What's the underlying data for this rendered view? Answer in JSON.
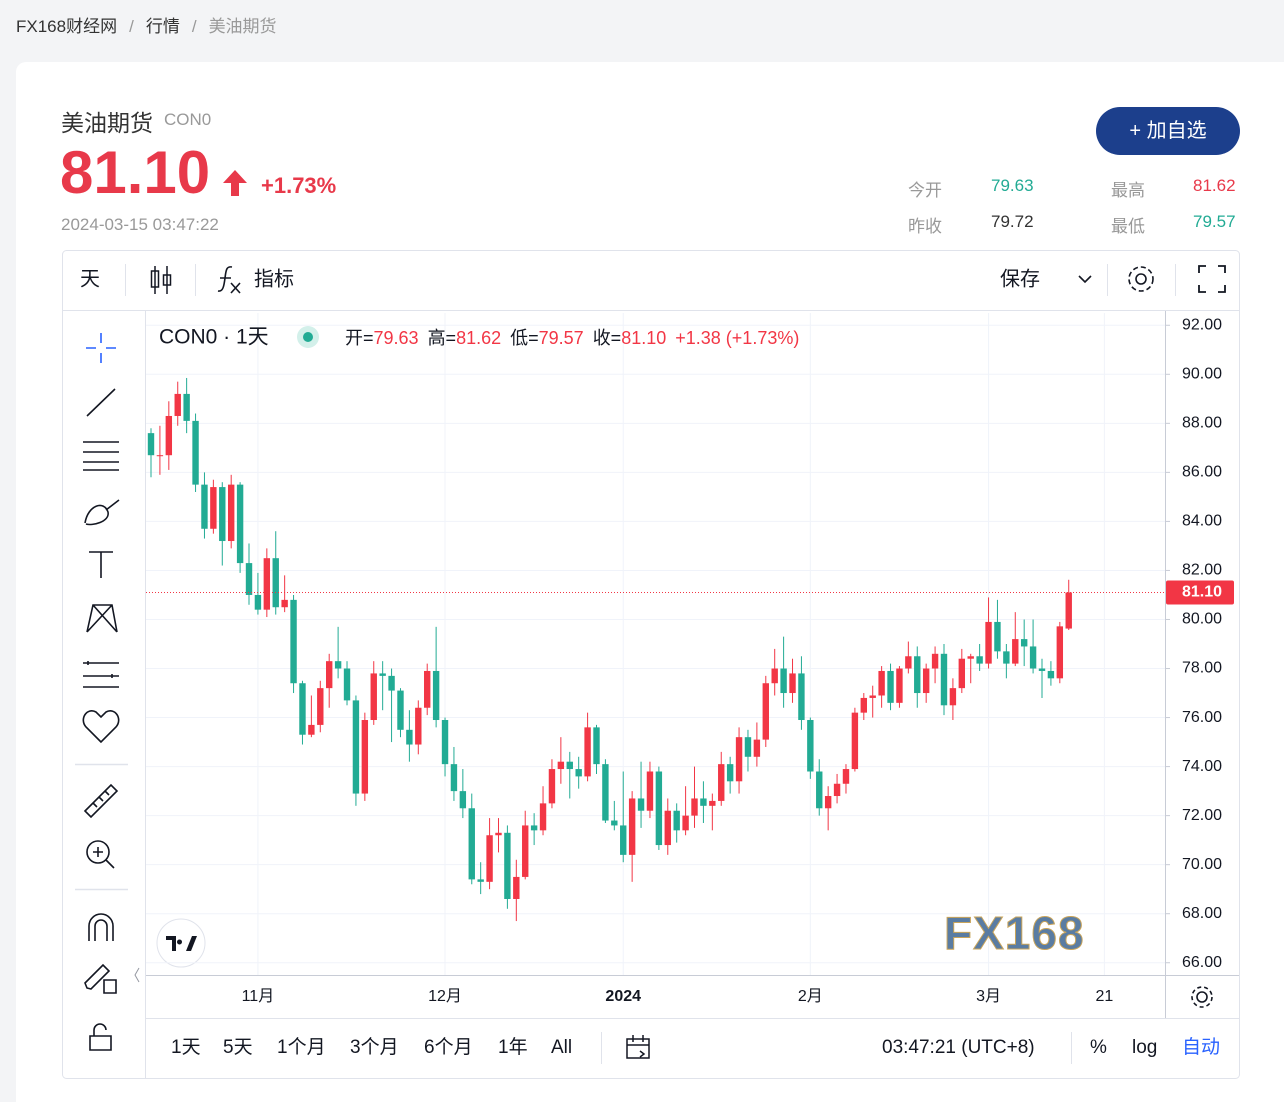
{
  "breadcrumb": [
    "FX168财经网",
    "行情",
    "美油期货"
  ],
  "quote": {
    "name": "美油期货",
    "code": "CON0",
    "price": "81.10",
    "change_pct": "+1.73%",
    "time": "2024-03-15 03:47:22",
    "button": "+ 加自选",
    "price_color": "#e8394a",
    "stats": [
      {
        "label": "今开",
        "value": "79.63",
        "color": "#22ab94"
      },
      {
        "label": "最高",
        "value": "81.62",
        "color": "#e8394a"
      },
      {
        "label": "昨收",
        "value": "79.72",
        "color": "#333333"
      },
      {
        "label": "最低",
        "value": "79.57",
        "color": "#22ab94"
      }
    ]
  },
  "toolbar": {
    "interval": "天",
    "indicators": "指标",
    "save": "保存"
  },
  "chart_data": {
    "type": "candlestick",
    "symbol": "CON0 · 1天",
    "legend": [
      {
        "label": "开=",
        "value": "79.63"
      },
      {
        "label": "高=",
        "value": "81.62"
      },
      {
        "label": "低=",
        "value": "79.57"
      },
      {
        "label": "收=",
        "value": "81.10"
      }
    ],
    "change": "+1.38 (+1.73%)",
    "categories": [
      null,
      null,
      null,
      null,
      null,
      null,
      null,
      null,
      null,
      null,
      null,
      null,
      "11月",
      null,
      null,
      null,
      null,
      null,
      null,
      null,
      null,
      null,
      null,
      null,
      null,
      null,
      null,
      null,
      null,
      null,
      null,
      null,
      null,
      "12月",
      null,
      null,
      null,
      null,
      null,
      null,
      null,
      null,
      null,
      null,
      null,
      null,
      null,
      null,
      null,
      null,
      null,
      null,
      null,
      "2024",
      null,
      null,
      null,
      null,
      null,
      null,
      null,
      null,
      null,
      null,
      null,
      null,
      null,
      null,
      null,
      null,
      null,
      null,
      null,
      null,
      "2月",
      null,
      null,
      null,
      null,
      null,
      null,
      null,
      null,
      null,
      null,
      null,
      null,
      null,
      null,
      null,
      null,
      null,
      null,
      null,
      "3月",
      null,
      null,
      null,
      null,
      null,
      null,
      null,
      null,
      null
    ],
    "extra_xticks": [
      "21"
    ],
    "open": [
      87.6,
      86.7,
      86.7,
      88.3,
      89.2,
      88.1,
      85.5,
      83.7,
      85.4,
      83.2,
      85.5,
      82.3,
      81.0,
      80.4,
      82.5,
      80.5,
      80.8,
      77.4,
      75.3,
      75.7,
      77.2,
      78.3,
      78.0,
      76.7,
      72.9,
      75.9,
      77.8,
      77.7,
      77.1,
      75.5,
      74.9,
      76.4,
      77.9,
      75.9,
      74.1,
      73.0,
      72.3,
      69.4,
      69.3,
      71.2,
      71.3,
      68.6,
      69.5,
      71.6,
      71.4,
      72.5,
      73.9,
      74.2,
      73.9,
      73.6,
      75.6,
      74.1,
      71.8,
      71.6,
      70.4,
      72.7,
      72.2,
      73.8,
      70.8,
      72.2,
      71.4,
      72.0,
      72.7,
      72.4,
      72.6,
      74.1,
      73.4,
      75.2,
      74.4,
      75.1,
      77.4,
      78.0,
      77.0,
      77.8,
      75.9,
      73.8,
      72.3,
      72.8,
      73.3,
      73.9,
      76.2,
      76.8,
      76.9,
      77.9,
      76.6,
      78.0,
      78.5,
      77.0,
      78.0,
      78.6,
      76.5,
      77.2,
      78.4,
      78.5,
      78.2,
      79.9,
      78.7,
      78.2,
      79.2,
      78.9,
      78.0,
      77.9,
      77.6,
      79.63
    ],
    "high": [
      87.8,
      87.9,
      88.9,
      89.7,
      89.85,
      88.4,
      86.0,
      85.7,
      85.6,
      85.9,
      85.6,
      83.1,
      81.9,
      82.9,
      83.6,
      81.8,
      81.0,
      77.5,
      76.9,
      77.5,
      78.6,
      79.7,
      78.3,
      76.9,
      76.2,
      78.3,
      78.3,
      78.0,
      77.2,
      76.3,
      76.7,
      78.2,
      79.7,
      76.0,
      74.8,
      73.9,
      72.9,
      70.1,
      71.9,
      71.9,
      71.6,
      70.2,
      72.2,
      72.1,
      73.2,
      74.3,
      75.2,
      74.6,
      74.4,
      76.2,
      75.7,
      74.3,
      72.6,
      73.8,
      73.0,
      74.2,
      74.2,
      74.0,
      72.7,
      72.5,
      73.2,
      74.0,
      73.4,
      72.9,
      74.6,
      74.4,
      75.6,
      75.5,
      75.8,
      77.7,
      78.8,
      79.3,
      78.4,
      78.5,
      76.0,
      74.3,
      73.2,
      73.7,
      74.1,
      76.4,
      77.0,
      77.3,
      78.1,
      78.2,
      78.1,
      79.1,
      78.9,
      78.2,
      78.9,
      79.0,
      77.6,
      78.8,
      78.6,
      79.0,
      80.9,
      80.8,
      79.0,
      80.3,
      80.0,
      80.0,
      78.4,
      78.3,
      79.9,
      81.62
    ],
    "low": [
      85.8,
      85.9,
      86.1,
      87.9,
      87.6,
      85.2,
      83.3,
      83.5,
      82.2,
      82.9,
      81.9,
      80.6,
      80.2,
      80.1,
      80.2,
      80.3,
      77.0,
      74.9,
      75.2,
      75.4,
      76.4,
      77.6,
      76.5,
      72.4,
      72.6,
      75.7,
      76.3,
      75.0,
      75.2,
      74.2,
      74.5,
      76.1,
      75.6,
      73.6,
      72.6,
      71.9,
      69.2,
      68.8,
      69.0,
      70.5,
      68.2,
      67.7,
      69.4,
      70.8,
      71.2,
      72.3,
      73.3,
      72.7,
      73.1,
      73.4,
      73.7,
      71.7,
      71.4,
      70.1,
      69.3,
      71.5,
      71.9,
      70.6,
      70.4,
      70.9,
      71.2,
      71.5,
      71.7,
      71.4,
      72.4,
      72.9,
      72.9,
      73.8,
      74.0,
      74.8,
      76.9,
      76.4,
      76.6,
      75.5,
      73.5,
      72.0,
      71.4,
      72.5,
      72.9,
      73.8,
      75.9,
      76.0,
      76.4,
      76.3,
      76.4,
      77.8,
      76.4,
      76.6,
      77.4,
      76.1,
      75.9,
      77.0,
      77.4,
      77.9,
      78.0,
      78.4,
      77.6,
      78.1,
      78.1,
      77.8,
      76.8,
      77.3,
      77.4,
      79.57
    ],
    "close": [
      86.7,
      86.7,
      88.3,
      89.2,
      88.1,
      85.5,
      83.7,
      85.4,
      83.2,
      85.5,
      82.3,
      81.0,
      80.4,
      82.5,
      80.5,
      80.8,
      77.4,
      75.3,
      75.7,
      77.2,
      78.3,
      78.0,
      76.7,
      72.9,
      75.9,
      77.8,
      77.7,
      77.1,
      75.5,
      74.9,
      76.4,
      77.9,
      75.9,
      74.1,
      73.0,
      72.3,
      69.4,
      69.3,
      71.2,
      71.3,
      68.6,
      69.5,
      71.6,
      71.4,
      72.5,
      73.9,
      74.2,
      73.9,
      73.6,
      75.6,
      74.1,
      71.8,
      71.6,
      70.4,
      72.7,
      72.2,
      73.8,
      70.8,
      72.2,
      71.4,
      72.0,
      72.7,
      72.4,
      72.6,
      74.1,
      73.4,
      75.2,
      74.4,
      75.1,
      77.4,
      78.0,
      77.0,
      77.8,
      75.9,
      73.8,
      72.3,
      72.8,
      73.3,
      73.9,
      76.2,
      76.8,
      76.9,
      77.9,
      76.6,
      78.0,
      78.5,
      77.0,
      78.0,
      78.6,
      76.5,
      77.2,
      78.4,
      78.5,
      78.2,
      79.9,
      78.7,
      78.2,
      79.2,
      78.9,
      78.0,
      77.9,
      77.6,
      79.72,
      81.1
    ],
    "up_color": "#f23645",
    "down_color": "#22ab94",
    "ylim": [
      65.5,
      92.5
    ],
    "yticks": [
      {
        "value": 66,
        "label": "66.00"
      },
      {
        "value": 68,
        "label": "68.00"
      },
      {
        "value": 70,
        "label": "70.00"
      },
      {
        "value": 72,
        "label": "72.00"
      },
      {
        "value": 74,
        "label": "74.00"
      },
      {
        "value": 76,
        "label": "76.00"
      },
      {
        "value": 78,
        "label": "78.00"
      },
      {
        "value": 80,
        "label": "80.00"
      },
      {
        "value": 82,
        "label": "82.00"
      },
      {
        "value": 84,
        "label": "84.00"
      },
      {
        "value": 86,
        "label": "86.00"
      },
      {
        "value": 88,
        "label": "88.00"
      },
      {
        "value": 90,
        "label": "90.00"
      },
      {
        "value": 92,
        "label": "92.00"
      }
    ],
    "last_price": {
      "value": 81.1,
      "label": "81.10"
    },
    "grid": true,
    "watermark": "FX168"
  },
  "range_bar": {
    "ranges": [
      "1天",
      "5天",
      "1个月",
      "3个月",
      "6个月",
      "1年",
      "All"
    ],
    "clock": "03:47:21 (UTC+8)",
    "options": [
      "%",
      "log",
      "自动"
    ]
  }
}
